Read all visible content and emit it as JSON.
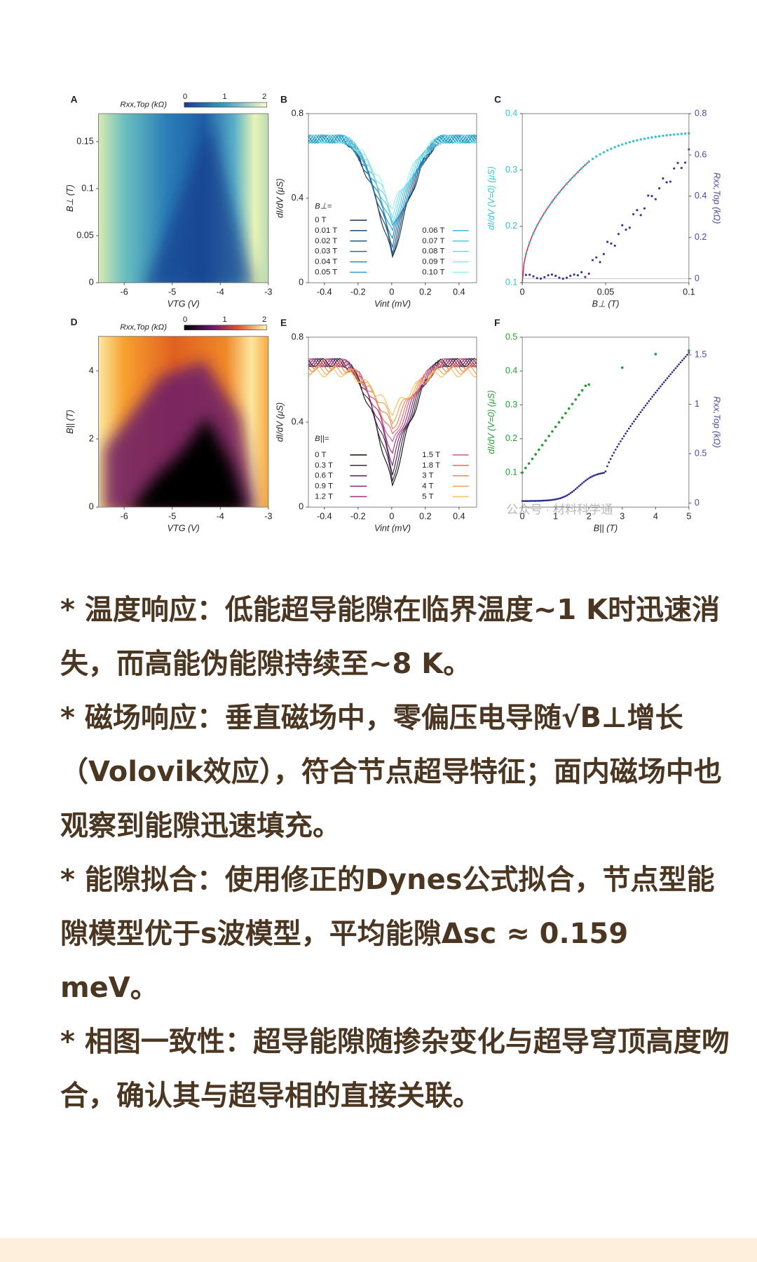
{
  "figure": {
    "panels": [
      {
        "label": "A",
        "colorbar_label": "Rxx,Top (kΩ)",
        "colorbar_ticks": [
          "0",
          "1",
          "2"
        ],
        "xticks": [
          "-6",
          "-5",
          "-4",
          "-3"
        ],
        "yticks": [
          "0.15",
          "0.1",
          "0.05",
          "0"
        ],
        "xlabel": "VTG (V)",
        "ylabel": "B⊥ (T)"
      },
      {
        "label": "B",
        "xticks": [
          "-0.4",
          "-0.2",
          "0",
          "0.2",
          "0.4"
        ],
        "yticks": [
          "0.8",
          "0.4",
          "0"
        ],
        "xlabel": "Vint (mV)",
        "ylabel": "dI/dV (μS)",
        "legend_title": "B⊥=",
        "legend": [
          "0 T",
          "0.01 T",
          "0.02 T",
          "0.03 T",
          "0.04 T",
          "0.05 T",
          "0.06 T",
          "0.07 T",
          "0.08 T",
          "0.09 T",
          "0.10 T"
        ]
      },
      {
        "label": "C",
        "xticks": [
          "0",
          "0.05",
          "0.1"
        ],
        "yticks": [
          "0.4",
          "0.3",
          "0.2",
          "0.1"
        ],
        "y2ticks": [
          "0.8",
          "0.6",
          "0.4",
          "0.2",
          "0"
        ],
        "xlabel": "B⊥ (T)",
        "ylabel": "dI/dV (V=0) (μS)",
        "y2label": "Rxx,Top (kΩ)"
      },
      {
        "label": "D",
        "colorbar_label": "Rxx,Top (kΩ)",
        "colorbar_ticks": [
          "0",
          "1",
          "2"
        ],
        "xticks": [
          "-6",
          "-5",
          "-4",
          "-3"
        ],
        "yticks": [
          "4",
          "2",
          "0"
        ],
        "xlabel": "VTG (V)",
        "ylabel": "B|| (T)"
      },
      {
        "label": "E",
        "xticks": [
          "-0.4",
          "-0.2",
          "0",
          "0.2",
          "0.4"
        ],
        "yticks": [
          "0.8",
          "0.4",
          "0"
        ],
        "xlabel": "Vint (mV)",
        "ylabel": "dI/dV (μS)",
        "legend_title": "B||=",
        "legend": [
          "0 T",
          "0.3 T",
          "0.6 T",
          "0.9 T",
          "1.2 T",
          "1.5 T",
          "1.8 T",
          "3 T",
          "4 T",
          "5 T"
        ]
      },
      {
        "label": "F",
        "xticks": [
          "0",
          "1",
          "2",
          "3",
          "4",
          "5"
        ],
        "yticks": [
          "0.5",
          "0.4",
          "0.3",
          "0.2",
          "0.1"
        ],
        "y2ticks": [
          "1.5",
          "1",
          "0.5",
          "0"
        ],
        "xlabel": "B|| (T)",
        "ylabel": "dI/dV (V=0) (μS)",
        "y2label": "Rxx,Top (kΩ)"
      }
    ],
    "watermark": "公众号 · 材料科学通"
  },
  "paragraphs": [
    "* 温度响应：低能超导能隙在临界温度~1 K时迅速消失，而高能伪能隙持续至~8 K。",
    "* 磁场响应：垂直磁场中，零偏压电导随√B⊥增长（Volovik效应），符合节点超导特征；面内磁场中也观察到能隙迅速填充。",
    "* 能隙拟合：使用修正的Dynes公式拟合，节点型能隙模型优于s波模型，平均能隙Δsc ≈ 0.159 meV。",
    "* 相图一致性：超导能隙随掺杂变化与超导穹顶高度吻合，确认其与超导相的直接关联。"
  ]
}
